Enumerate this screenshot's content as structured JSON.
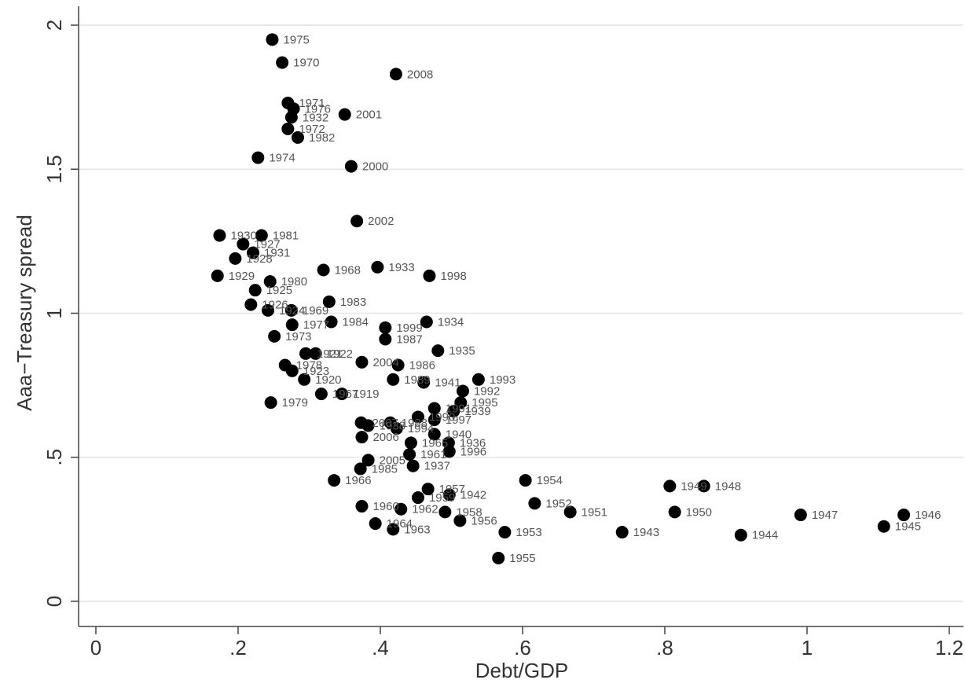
{
  "chart_data": {
    "type": "scatter",
    "xlabel": "Debt/GDP",
    "ylabel": "Aaa−Treasury spread",
    "xlim": [
      0,
      1.2
    ],
    "ylim": [
      0,
      2
    ],
    "xticks": [
      0,
      0.2,
      0.4,
      0.6,
      0.8,
      1,
      1.2
    ],
    "xtick_labels": [
      "0",
      ".2",
      ".4",
      ".6",
      ".8",
      "1",
      "1.2"
    ],
    "yticks": [
      0,
      0.5,
      1,
      1.5,
      2
    ],
    "ytick_labels": [
      "0",
      ".5",
      "1",
      "1.5",
      "2"
    ],
    "grid": "horizontal",
    "marker_color": "#000000",
    "points": [
      {
        "label": "1975",
        "x": 0.248,
        "y": 1.95
      },
      {
        "label": "1970",
        "x": 0.262,
        "y": 1.87
      },
      {
        "label": "2008",
        "x": 0.422,
        "y": 1.83
      },
      {
        "label": "1971",
        "x": 0.27,
        "y": 1.73
      },
      {
        "label": "1976",
        "x": 0.278,
        "y": 1.71
      },
      {
        "label": "1932",
        "x": 0.275,
        "y": 1.68
      },
      {
        "label": "2001",
        "x": 0.35,
        "y": 1.69
      },
      {
        "label": "1972",
        "x": 0.27,
        "y": 1.64
      },
      {
        "label": "1982",
        "x": 0.284,
        "y": 1.61
      },
      {
        "label": "1974",
        "x": 0.228,
        "y": 1.54
      },
      {
        "label": "2000",
        "x": 0.359,
        "y": 1.51
      },
      {
        "label": "2002",
        "x": 0.367,
        "y": 1.32
      },
      {
        "label": "1930",
        "x": 0.174,
        "y": 1.27
      },
      {
        "label": "1981",
        "x": 0.233,
        "y": 1.27
      },
      {
        "label": "1927",
        "x": 0.207,
        "y": 1.24
      },
      {
        "label": "1931",
        "x": 0.221,
        "y": 1.21
      },
      {
        "label": "1928",
        "x": 0.196,
        "y": 1.19
      },
      {
        "label": "1968",
        "x": 0.32,
        "y": 1.15
      },
      {
        "label": "1933",
        "x": 0.396,
        "y": 1.16
      },
      {
        "label": "1998",
        "x": 0.469,
        "y": 1.13
      },
      {
        "label": "1929",
        "x": 0.171,
        "y": 1.13
      },
      {
        "label": "1980",
        "x": 0.245,
        "y": 1.11
      },
      {
        "label": "1925",
        "x": 0.224,
        "y": 1.08
      },
      {
        "label": "1983",
        "x": 0.328,
        "y": 1.04
      },
      {
        "label": "1926",
        "x": 0.218,
        "y": 1.03
      },
      {
        "label": "1924",
        "x": 0.242,
        "y": 1.01
      },
      {
        "label": "1969",
        "x": 0.275,
        "y": 1.01
      },
      {
        "label": "1984",
        "x": 0.331,
        "y": 0.97
      },
      {
        "label": "1934",
        "x": 0.465,
        "y": 0.97
      },
      {
        "label": "1977",
        "x": 0.276,
        "y": 0.96
      },
      {
        "label": "1999",
        "x": 0.407,
        "y": 0.95
      },
      {
        "label": "1973",
        "x": 0.251,
        "y": 0.92
      },
      {
        "label": "1987",
        "x": 0.407,
        "y": 0.91
      },
      {
        "label": "1935",
        "x": 0.481,
        "y": 0.87
      },
      {
        "label": "1921",
        "x": 0.295,
        "y": 0.86
      },
      {
        "label": "1922",
        "x": 0.309,
        "y": 0.86
      },
      {
        "label": "2004",
        "x": 0.374,
        "y": 0.83
      },
      {
        "label": "1986",
        "x": 0.425,
        "y": 0.82
      },
      {
        "label": "1978",
        "x": 0.266,
        "y": 0.82
      },
      {
        "label": "1923",
        "x": 0.276,
        "y": 0.8
      },
      {
        "label": "1920",
        "x": 0.293,
        "y": 0.77
      },
      {
        "label": "1989",
        "x": 0.418,
        "y": 0.77
      },
      {
        "label": "1941",
        "x": 0.461,
        "y": 0.76
      },
      {
        "label": "1993",
        "x": 0.538,
        "y": 0.77
      },
      {
        "label": "1992",
        "x": 0.516,
        "y": 0.73
      },
      {
        "label": "1967",
        "x": 0.317,
        "y": 0.72
      },
      {
        "label": "1919",
        "x": 0.346,
        "y": 0.72
      },
      {
        "label": "1995",
        "x": 0.513,
        "y": 0.69
      },
      {
        "label": "1979",
        "x": 0.246,
        "y": 0.69
      },
      {
        "label": "1991",
        "x": 0.476,
        "y": 0.67
      },
      {
        "label": "1939",
        "x": 0.503,
        "y": 0.66
      },
      {
        "label": "1990",
        "x": 0.453,
        "y": 0.64
      },
      {
        "label": "1997",
        "x": 0.476,
        "y": 0.63
      },
      {
        "label": "2007",
        "x": 0.373,
        "y": 0.62
      },
      {
        "label": "1938",
        "x": 0.383,
        "y": 0.61
      },
      {
        "label": "1988",
        "x": 0.414,
        "y": 0.62
      },
      {
        "label": "1994",
        "x": 0.423,
        "y": 0.6
      },
      {
        "label": "1940",
        "x": 0.476,
        "y": 0.58
      },
      {
        "label": "2006",
        "x": 0.374,
        "y": 0.57
      },
      {
        "label": "1965",
        "x": 0.443,
        "y": 0.55
      },
      {
        "label": "1936",
        "x": 0.496,
        "y": 0.55
      },
      {
        "label": "1996",
        "x": 0.497,
        "y": 0.52
      },
      {
        "label": "1961",
        "x": 0.441,
        "y": 0.51
      },
      {
        "label": "2005",
        "x": 0.383,
        "y": 0.49
      },
      {
        "label": "1937",
        "x": 0.446,
        "y": 0.47
      },
      {
        "label": "1985",
        "x": 0.372,
        "y": 0.46
      },
      {
        "label": "1966",
        "x": 0.335,
        "y": 0.42
      },
      {
        "label": "1954",
        "x": 0.604,
        "y": 0.42
      },
      {
        "label": "1949",
        "x": 0.807,
        "y": 0.4
      },
      {
        "label": "1948",
        "x": 0.855,
        "y": 0.4
      },
      {
        "label": "1957",
        "x": 0.467,
        "y": 0.39
      },
      {
        "label": "1942",
        "x": 0.497,
        "y": 0.37
      },
      {
        "label": "1959",
        "x": 0.453,
        "y": 0.36
      },
      {
        "label": "1952",
        "x": 0.617,
        "y": 0.34
      },
      {
        "label": "1960",
        "x": 0.374,
        "y": 0.33
      },
      {
        "label": "1962",
        "x": 0.429,
        "y": 0.32
      },
      {
        "label": "1958",
        "x": 0.491,
        "y": 0.31
      },
      {
        "label": "1951",
        "x": 0.667,
        "y": 0.31
      },
      {
        "label": "1950",
        "x": 0.814,
        "y": 0.31
      },
      {
        "label": "1947",
        "x": 0.991,
        "y": 0.3
      },
      {
        "label": "1946",
        "x": 1.136,
        "y": 0.3
      },
      {
        "label": "1964",
        "x": 0.393,
        "y": 0.27
      },
      {
        "label": "1956",
        "x": 0.512,
        "y": 0.28
      },
      {
        "label": "1945",
        "x": 1.108,
        "y": 0.26
      },
      {
        "label": "1963",
        "x": 0.418,
        "y": 0.25
      },
      {
        "label": "1953",
        "x": 0.575,
        "y": 0.24
      },
      {
        "label": "1943",
        "x": 0.74,
        "y": 0.24
      },
      {
        "label": "1944",
        "x": 0.907,
        "y": 0.23
      },
      {
        "label": "1955",
        "x": 0.566,
        "y": 0.15
      }
    ]
  }
}
